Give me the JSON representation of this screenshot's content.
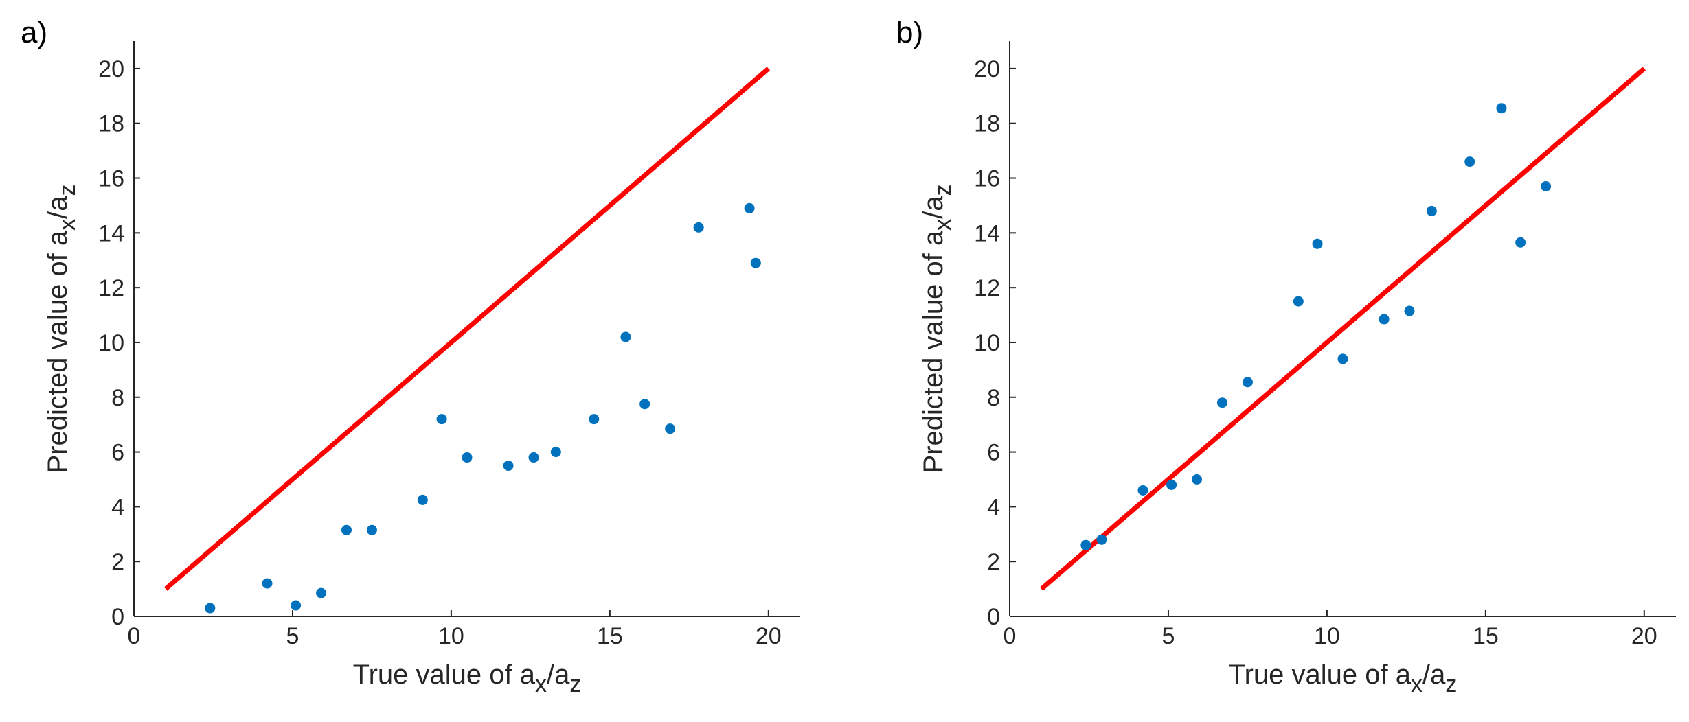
{
  "chart_data": [
    {
      "panel_label": "a)",
      "type": "scatter",
      "xlabel": {
        "base": "True value of a",
        "sub1": "x",
        "mid": "/a",
        "sub2": "z"
      },
      "ylabel": {
        "base": "Predicted value of a",
        "sub1": "x",
        "mid": "/a",
        "sub2": "z"
      },
      "xlim": [
        0,
        21
      ],
      "ylim": [
        0,
        21
      ],
      "xticks": [
        0,
        5,
        10,
        15,
        20
      ],
      "yticks": [
        0,
        2,
        4,
        6,
        8,
        10,
        12,
        14,
        16,
        18,
        20
      ],
      "grid": false,
      "reference_line": {
        "x": [
          1,
          20
        ],
        "y": [
          1,
          20
        ],
        "color": "#ff0000"
      },
      "marker_color": "#0072bd",
      "points": [
        [
          2.4,
          0.3
        ],
        [
          4.2,
          1.2
        ],
        [
          5.1,
          0.4
        ],
        [
          5.9,
          0.85
        ],
        [
          6.7,
          3.15
        ],
        [
          7.5,
          3.15
        ],
        [
          9.1,
          4.25
        ],
        [
          9.7,
          7.2
        ],
        [
          10.5,
          5.8
        ],
        [
          11.8,
          5.5
        ],
        [
          12.6,
          5.8
        ],
        [
          13.3,
          6.0
        ],
        [
          14.5,
          7.2
        ],
        [
          15.5,
          10.2
        ],
        [
          16.1,
          7.75
        ],
        [
          16.9,
          6.85
        ],
        [
          17.8,
          14.2
        ],
        [
          19.4,
          14.9
        ],
        [
          19.6,
          12.9
        ]
      ]
    },
    {
      "panel_label": "b)",
      "type": "scatter",
      "xlabel": {
        "base": "True value of a",
        "sub1": "x",
        "mid": "/a",
        "sub2": "z"
      },
      "ylabel": {
        "base": "Predicted value of a",
        "sub1": "x",
        "mid": "/a",
        "sub2": "z"
      },
      "xlim": [
        0,
        21
      ],
      "ylim": [
        0,
        21
      ],
      "xticks": [
        0,
        5,
        10,
        15,
        20
      ],
      "yticks": [
        0,
        2,
        4,
        6,
        8,
        10,
        12,
        14,
        16,
        18,
        20
      ],
      "grid": false,
      "reference_line": {
        "x": [
          1,
          20
        ],
        "y": [
          1,
          20
        ],
        "color": "#ff0000"
      },
      "marker_color": "#0072bd",
      "points": [
        [
          2.4,
          2.6
        ],
        [
          2.9,
          2.8
        ],
        [
          4.2,
          4.6
        ],
        [
          5.1,
          4.8
        ],
        [
          5.9,
          5.0
        ],
        [
          6.7,
          7.8
        ],
        [
          7.5,
          8.55
        ],
        [
          9.1,
          11.5
        ],
        [
          9.7,
          13.6
        ],
        [
          10.5,
          9.4
        ],
        [
          11.8,
          10.85
        ],
        [
          12.6,
          11.15
        ],
        [
          13.3,
          14.8
        ],
        [
          14.5,
          16.6
        ],
        [
          15.5,
          18.55
        ],
        [
          16.1,
          13.65
        ],
        [
          16.9,
          15.7
        ]
      ]
    }
  ]
}
